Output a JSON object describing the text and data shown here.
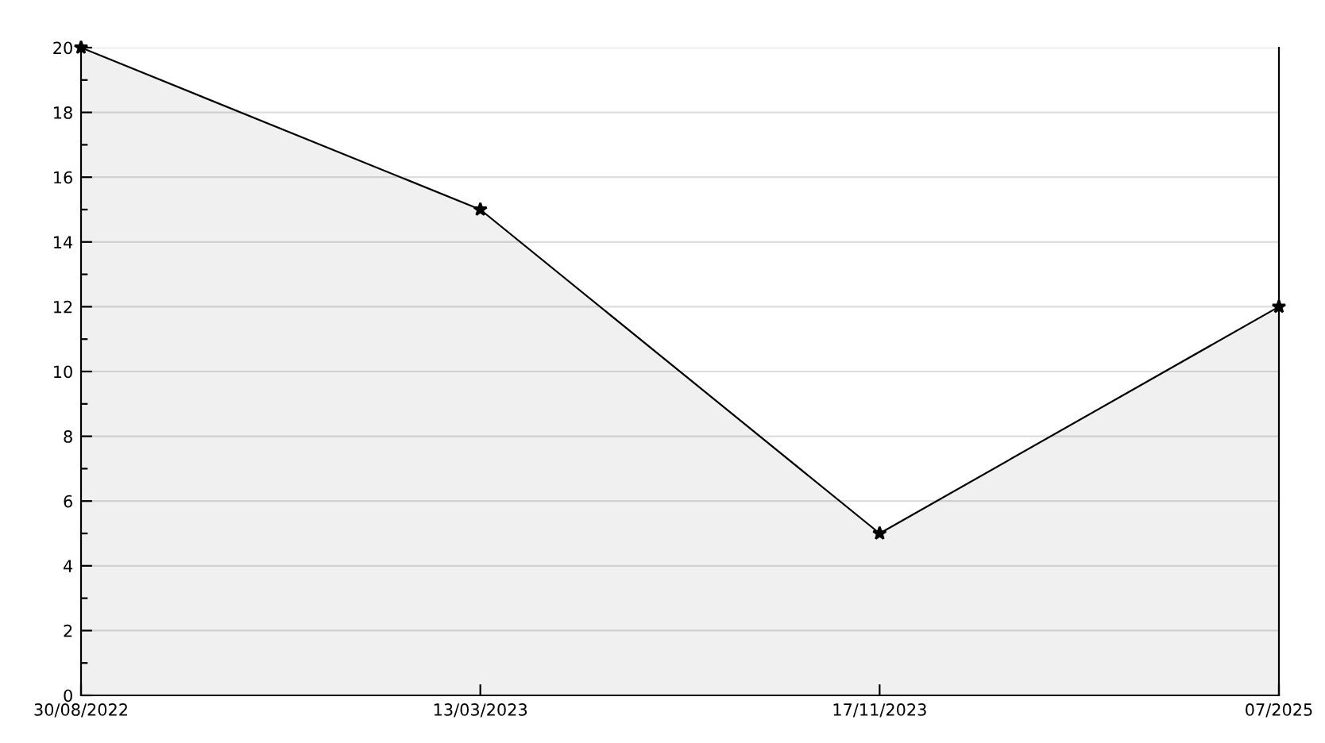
{
  "chart_data": {
    "type": "area",
    "categories": [
      "30/08/2022",
      "13/03/2023",
      "17/11/2023",
      "07/2025"
    ],
    "series": [
      {
        "color": "#000000",
        "values": [
          20,
          15,
          5,
          12
        ]
      }
    ],
    "ylim": [
      0,
      20
    ],
    "yticks": [
      0,
      {
        "value": 1,
        "label": null
      },
      2,
      {
        "value": 3,
        "label": null
      },
      4,
      {
        "value": 5,
        "label": null
      },
      6,
      {
        "value": 7,
        "label": null
      },
      8,
      {
        "value": 9,
        "label": null
      },
      10,
      {
        "value": 11,
        "label": null
      },
      12,
      {
        "value": 13,
        "label": null
      },
      14,
      {
        "value": 15,
        "label": null
      },
      16,
      {
        "value": 17,
        "label": null
      },
      18,
      {
        "value": 19,
        "label": null
      },
      20
    ],
    "grid": "y",
    "marker": "star",
    "line_style": "solid"
  }
}
